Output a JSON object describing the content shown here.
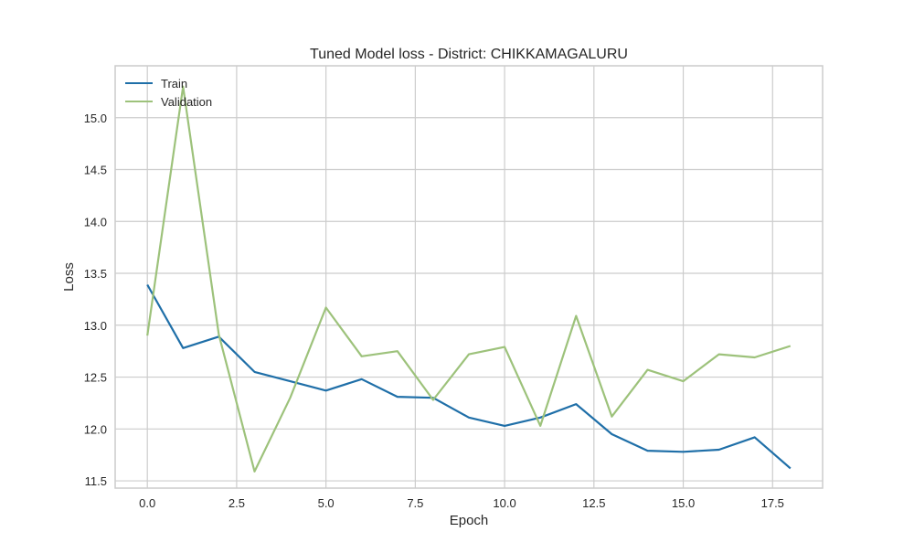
{
  "chart_data": {
    "type": "line",
    "title": "Tuned Model loss - District: CHIKKAMAGALURU",
    "xlabel": "Epoch",
    "ylabel": "Loss",
    "x": [
      0,
      1,
      2,
      3,
      4,
      5,
      6,
      7,
      8,
      9,
      10,
      11,
      12,
      13,
      14,
      15,
      16,
      17,
      18
    ],
    "xlim": [
      -0.9,
      18.9
    ],
    "ylim": [
      11.43,
      15.5
    ],
    "xticks": [
      0.0,
      2.5,
      5.0,
      7.5,
      10.0,
      12.5,
      15.0,
      17.5
    ],
    "xtick_labels": [
      "0.0",
      "2.5",
      "5.0",
      "7.5",
      "10.0",
      "12.5",
      "15.0",
      "17.5"
    ],
    "yticks": [
      11.5,
      12.0,
      12.5,
      13.0,
      13.5,
      14.0,
      14.5,
      15.0
    ],
    "ytick_labels": [
      "11.5",
      "12.0",
      "12.5",
      "13.0",
      "13.5",
      "14.0",
      "14.5",
      "15.0"
    ],
    "grid": true,
    "legend_position": "top-left",
    "series": [
      {
        "name": "Train",
        "color": "#1f6fa8",
        "values": [
          13.39,
          12.78,
          12.89,
          12.55,
          12.46,
          12.37,
          12.48,
          12.31,
          12.3,
          12.11,
          12.03,
          12.11,
          12.24,
          11.95,
          11.79,
          11.78,
          11.8,
          11.92,
          11.62
        ]
      },
      {
        "name": "Validation",
        "color": "#9dc27b",
        "values": [
          12.9,
          15.3,
          12.91,
          11.59,
          12.3,
          13.17,
          12.7,
          12.75,
          12.28,
          12.72,
          12.79,
          12.03,
          13.09,
          12.12,
          12.57,
          12.46,
          12.72,
          12.69,
          12.8
        ]
      }
    ]
  }
}
